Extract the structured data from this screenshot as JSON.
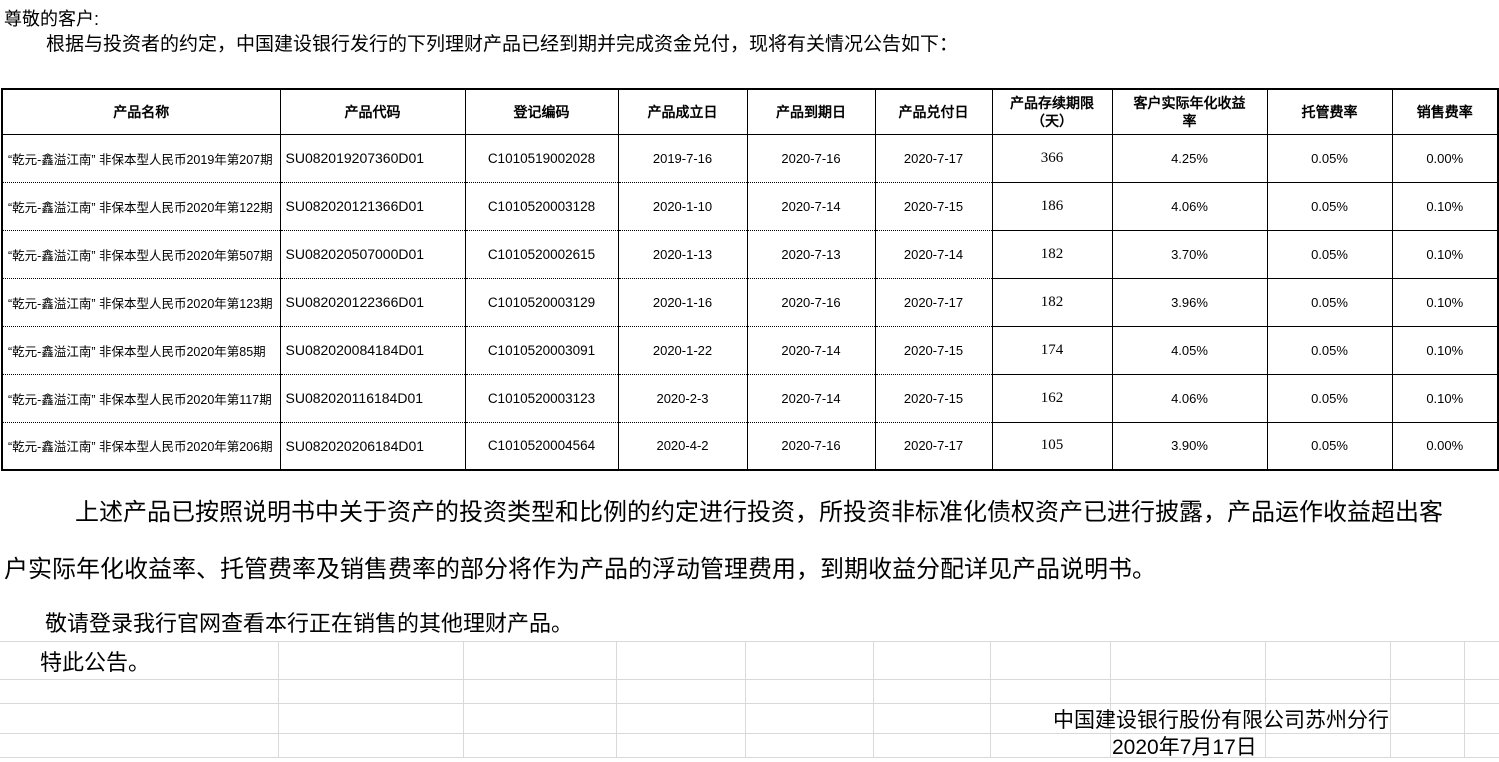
{
  "colors": {
    "text": "#000000",
    "table_border": "#000000",
    "gridline": "#d9d9d9"
  },
  "document": {
    "salutation": "尊敬的客户:",
    "intro": "根据与投资者的约定，中国建设银行发行的下列理财产品已经到期并完成资金兑付，现将有关情况公告如下：",
    "disclosure_line1": "上述产品已按照说明书中关于资产的投资类型和比例的约定进行投资，所投资非标准化债权资产已进行披露，产品运作收益超出客",
    "disclosure_line2": "户实际年化收益率、托管费率及销售费率的部分将作为产品的浮动管理费用，到期收益分配详见产品说明书。",
    "promo": "敬请登录我行官网查看本行正在销售的其他理财产品。",
    "closing": "特此公告。",
    "issuer": "中国建设银行股份有限公司苏州分行",
    "date": "2020年7月17日"
  },
  "table": {
    "headers": [
      "产品名称",
      "产品代码",
      "登记编码",
      "产品成立日",
      "产品到期日",
      "产品兑付日",
      "产品存续期限\n（天）",
      "客户实际年化收益\n率",
      "托管费率",
      "销售费率"
    ],
    "rows": [
      [
        "“乾元-鑫溢江南” 非保本型人民币2019年第207期",
        "SU082019207360D01",
        "C1010519002028",
        "2019-7-16",
        "2020-7-16",
        "2020-7-17",
        "366",
        "4.25%",
        "0.05%",
        "0.00%"
      ],
      [
        "“乾元-鑫溢江南” 非保本型人民币2020年第122期",
        "SU082020121366D01",
        "C1010520003128",
        "2020-1-10",
        "2020-7-14",
        "2020-7-15",
        "186",
        "4.06%",
        "0.05%",
        "0.10%"
      ],
      [
        "“乾元-鑫溢江南” 非保本型人民币2020年第507期",
        "SU082020507000D01",
        "C1010520002615",
        "2020-1-13",
        "2020-7-13",
        "2020-7-14",
        "182",
        "3.70%",
        "0.05%",
        "0.10%"
      ],
      [
        "“乾元-鑫溢江南” 非保本型人民币2020年第123期",
        "SU082020122366D01",
        "C1010520003129",
        "2020-1-16",
        "2020-7-16",
        "2020-7-17",
        "182",
        "3.96%",
        "0.05%",
        "0.10%"
      ],
      [
        "“乾元-鑫溢江南” 非保本型人民币2020年第85期",
        "SU082020084184D01",
        "C1010520003091",
        "2020-1-22",
        "2020-7-14",
        "2020-7-15",
        "174",
        "4.05%",
        "0.05%",
        "0.10%"
      ],
      [
        "“乾元-鑫溢江南” 非保本型人民币2020年第117期",
        "SU082020116184D01",
        "C1010520003123",
        "2020-2-3",
        "2020-7-14",
        "2020-7-15",
        "162",
        "4.06%",
        "0.05%",
        "0.10%"
      ],
      [
        "“乾元-鑫溢江南” 非保本型人民币2020年第206期",
        "SU082020206184D01",
        "C1010520004564",
        "2020-4-2",
        "2020-7-16",
        "2020-7-17",
        "105",
        "3.90%",
        "0.05%",
        "0.00%"
      ]
    ]
  }
}
